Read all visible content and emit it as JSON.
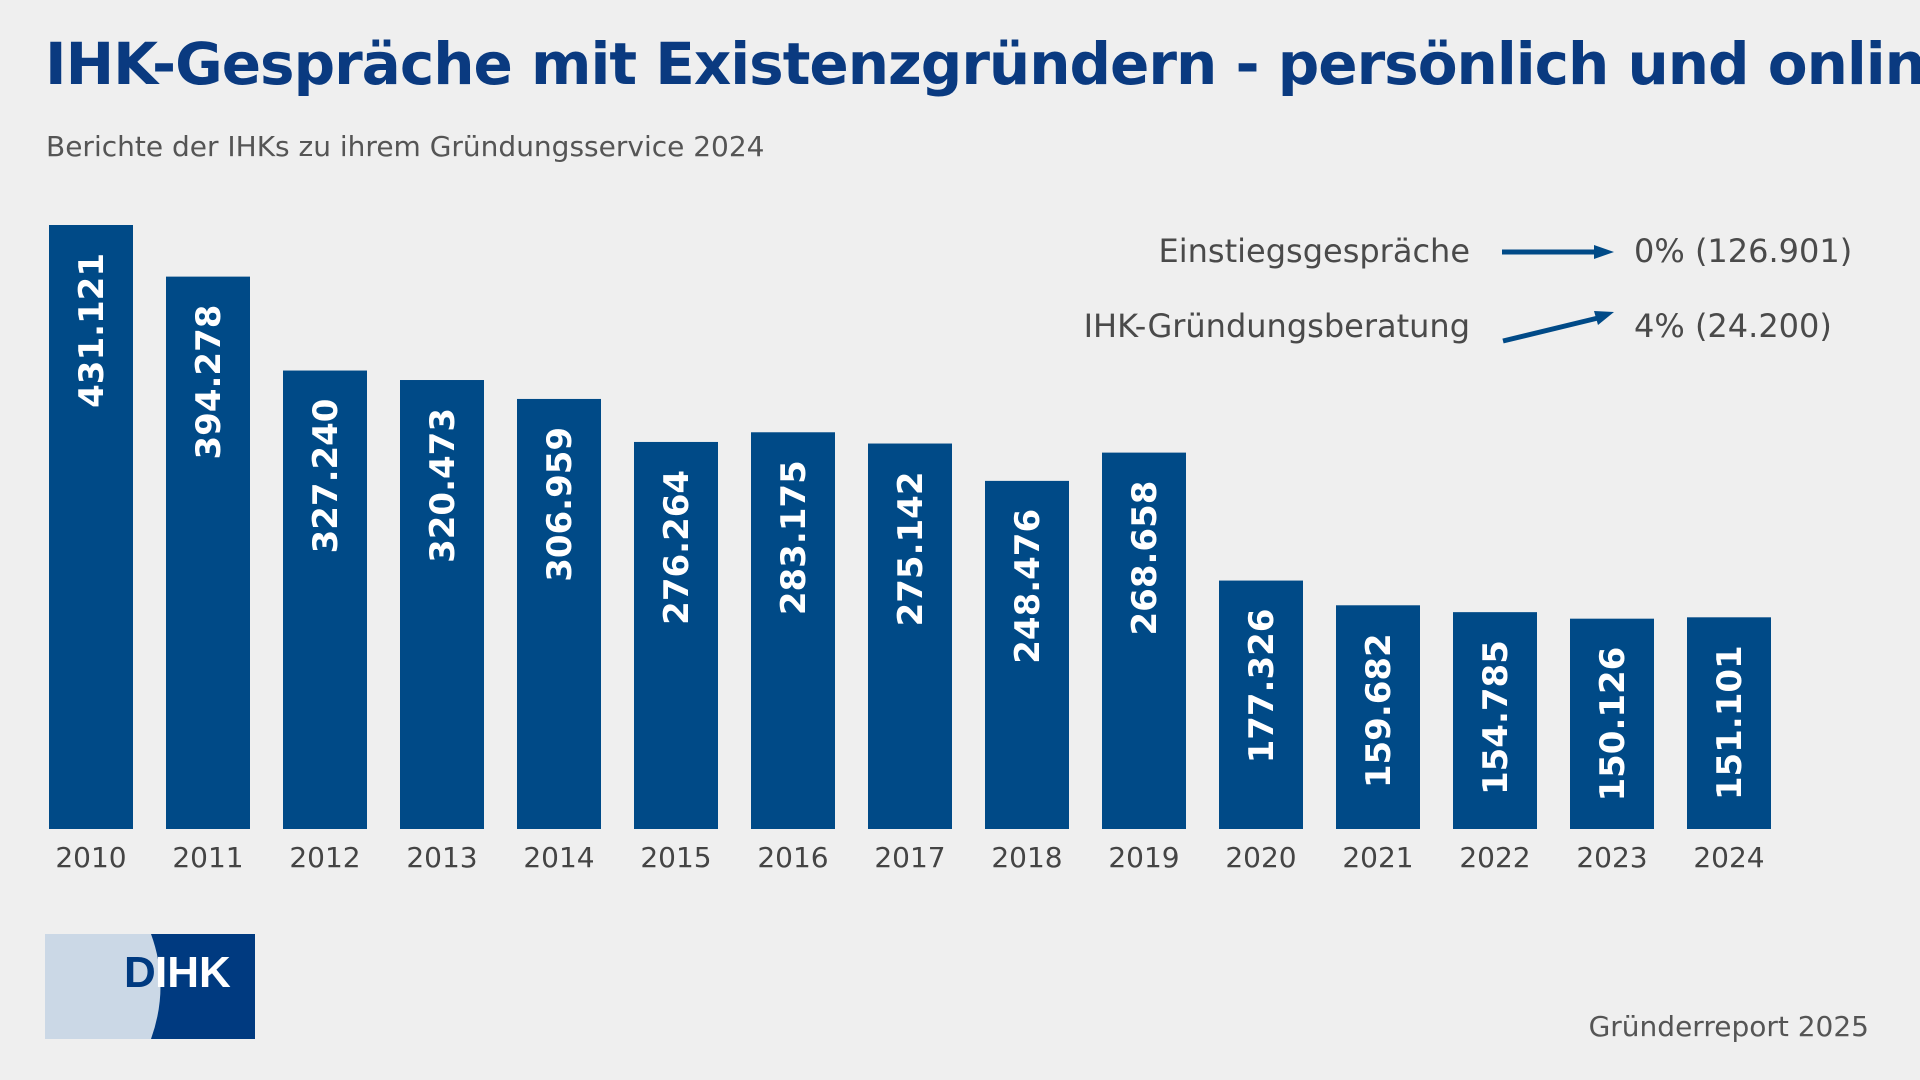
{
  "title": "IHK-Gespräche mit Existenzgründern - persönlich und online",
  "subtitle": "Berichte der IHKs zu ihrem Gründungsservice 2024",
  "legend": [
    {
      "label": "Einstiegsgespräche",
      "trend": "flat",
      "value": "0% (126.901)"
    },
    {
      "label": "IHK-Gründungsberatung",
      "trend": "up",
      "value": "4% (24.200)"
    }
  ],
  "footer": "Gründerreport 2025",
  "logo": {
    "text": "DIHK"
  },
  "colors": {
    "bar": "#004a87",
    "title": "#0a3a80",
    "background": "#efefef",
    "logo_light": "#cbd8e6",
    "logo_dark": "#003a80"
  },
  "chart_data": {
    "type": "bar",
    "title": "IHK-Gespräche mit Existenzgründern - persönlich und online",
    "categories": [
      "2010",
      "2011",
      "2012",
      "2013",
      "2014",
      "2015",
      "2016",
      "2017",
      "2018",
      "2019",
      "2020",
      "2021",
      "2022",
      "2023",
      "2024"
    ],
    "values": [
      431121,
      394278,
      327240,
      320473,
      306959,
      276264,
      283175,
      275142,
      248476,
      268658,
      177326,
      159682,
      154785,
      150126,
      151101
    ],
    "data_labels": [
      "431.121",
      "394.278",
      "327.240",
      "320.473",
      "306.959",
      "276.264",
      "283.175",
      "275.142",
      "248.476",
      "268.658",
      "177.326",
      "159.682",
      "154.785",
      "150.126",
      "151.101"
    ],
    "ylim": [
      0,
      431121
    ],
    "grid": false,
    "legend": "top-right"
  }
}
